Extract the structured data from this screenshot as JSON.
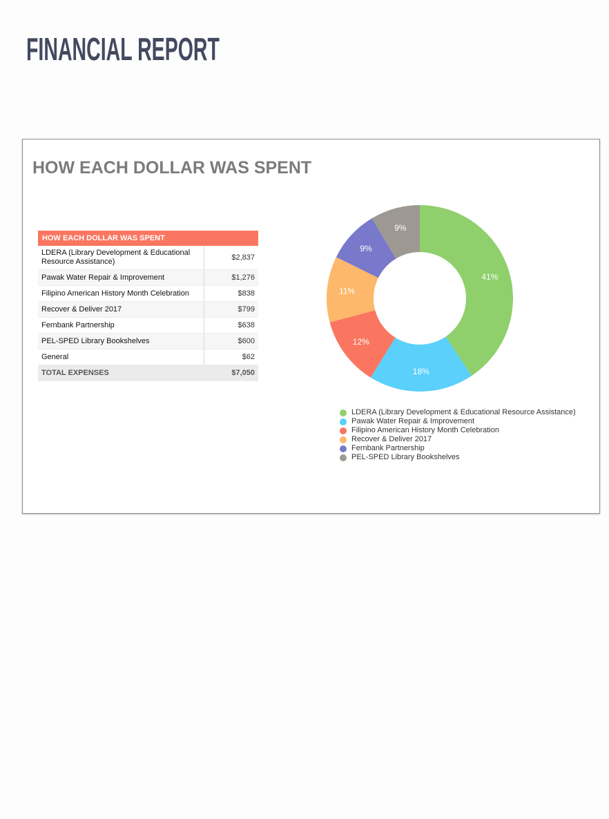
{
  "page": {
    "title": "FINANCIAL REPORT"
  },
  "card": {
    "title": "HOW EACH DOLLAR WAS SPENT"
  },
  "table": {
    "header": "HOW EACH DOLLAR WAS SPENT",
    "rows": [
      {
        "label": "LDERA (Library Development & Educational Resource Assistance)",
        "amount": "$2,837"
      },
      {
        "label": "Pawak Water Repair & Improvement",
        "amount": "$1,276"
      },
      {
        "label": "Filipino American History Month Celebration",
        "amount": "$838"
      },
      {
        "label": "Recover & Deliver 2017",
        "amount": "$799"
      },
      {
        "label": "Fernbank Partnership",
        "amount": "$638"
      },
      {
        "label": "PEL-SPED Library Bookshelves",
        "amount": "$600"
      },
      {
        "label": "General",
        "amount": "$62"
      }
    ],
    "total_label": "TOTAL EXPENSES",
    "total_amount": "$7,050"
  },
  "chart_data": {
    "type": "pie",
    "donut": true,
    "title": "",
    "categories": [
      "LDERA (Library Development & Educational Resource Assistance)",
      "Pawak Water Repair & Improvement",
      "Filipino American History Month Celebration",
      "Recover & Deliver 2017",
      "Fernbank Partnership",
      "PEL-SPED Library Bookshelves"
    ],
    "values": [
      2837,
      1276,
      838,
      799,
      638,
      600
    ],
    "labels": [
      "41%",
      "18%",
      "12%",
      "11%",
      "9%",
      "9%"
    ],
    "colors": [
      "#8fcf6c",
      "#5ad0fb",
      "#fa7660",
      "#fdb86b",
      "#7879cb",
      "#9d9892"
    ],
    "legend_position": "bottom-left"
  }
}
